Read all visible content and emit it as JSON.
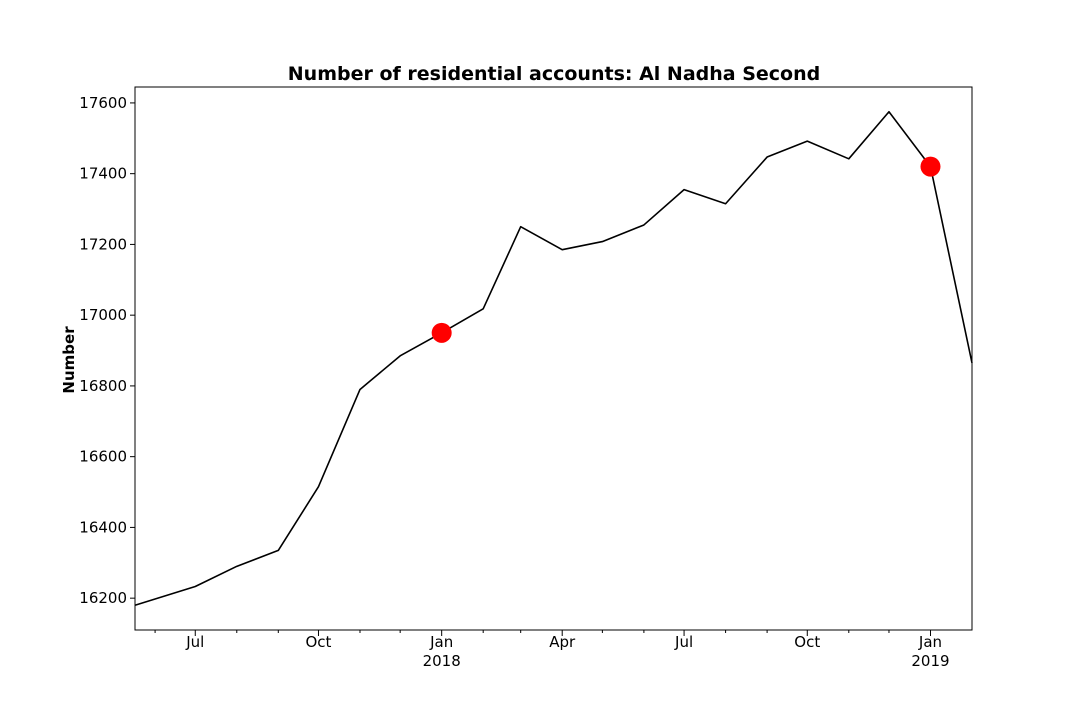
{
  "chart_data": {
    "type": "line",
    "title": "Number of residential accounts: Al Nadha Second",
    "xlabel": "",
    "ylabel": "Number",
    "xlim": [
      "2017-05-17",
      "2019-02-01"
    ],
    "ylim": [
      16110,
      17645
    ],
    "grid": false,
    "legend": "none",
    "yticks": [
      16200,
      16400,
      16600,
      16800,
      17000,
      17200,
      17400,
      17600
    ],
    "xticks_major": [
      {
        "date": "2017-07-01",
        "label": "Jul",
        "sublabel": ""
      },
      {
        "date": "2017-10-01",
        "label": "Oct",
        "sublabel": ""
      },
      {
        "date": "2018-01-01",
        "label": "Jan",
        "sublabel": "2018"
      },
      {
        "date": "2018-04-01",
        "label": "Apr",
        "sublabel": ""
      },
      {
        "date": "2018-07-01",
        "label": "Jul",
        "sublabel": ""
      },
      {
        "date": "2018-10-01",
        "label": "Oct",
        "sublabel": ""
      },
      {
        "date": "2019-01-01",
        "label": "Jan",
        "sublabel": "2019"
      }
    ],
    "xticks_minor": [
      "2017-06-01",
      "2017-08-01",
      "2017-09-01",
      "2017-11-01",
      "2017-12-01",
      "2018-02-01",
      "2018-03-01",
      "2018-05-01",
      "2018-06-01",
      "2018-08-01",
      "2018-09-01",
      "2018-11-01",
      "2018-12-01"
    ],
    "series": [
      {
        "color": "#000000",
        "points": [
          {
            "x": "2017-05-17",
            "y": 16180
          },
          {
            "x": "2017-07-01",
            "y": 16233
          },
          {
            "x": "2017-08-01",
            "y": 16290
          },
          {
            "x": "2017-09-01",
            "y": 16335
          },
          {
            "x": "2017-10-01",
            "y": 16515
          },
          {
            "x": "2017-11-01",
            "y": 16790
          },
          {
            "x": "2017-12-01",
            "y": 16885
          },
          {
            "x": "2018-01-01",
            "y": 16950
          },
          {
            "x": "2018-02-01",
            "y": 17018
          },
          {
            "x": "2018-03-01",
            "y": 17250
          },
          {
            "x": "2018-04-01",
            "y": 17185
          },
          {
            "x": "2018-05-01",
            "y": 17208
          },
          {
            "x": "2018-06-01",
            "y": 17255
          },
          {
            "x": "2018-07-01",
            "y": 17355
          },
          {
            "x": "2018-08-01",
            "y": 17315
          },
          {
            "x": "2018-09-01",
            "y": 17447
          },
          {
            "x": "2018-10-01",
            "y": 17492
          },
          {
            "x": "2018-11-01",
            "y": 17442
          },
          {
            "x": "2018-12-01",
            "y": 17575
          },
          {
            "x": "2019-01-01",
            "y": 17420
          },
          {
            "x": "2019-02-01",
            "y": 16865
          }
        ]
      }
    ],
    "highlights": [
      {
        "x": "2018-01-01",
        "y": 16950,
        "color": "#ff0000"
      },
      {
        "x": "2019-01-01",
        "y": 17420,
        "color": "#ff0000"
      }
    ]
  }
}
